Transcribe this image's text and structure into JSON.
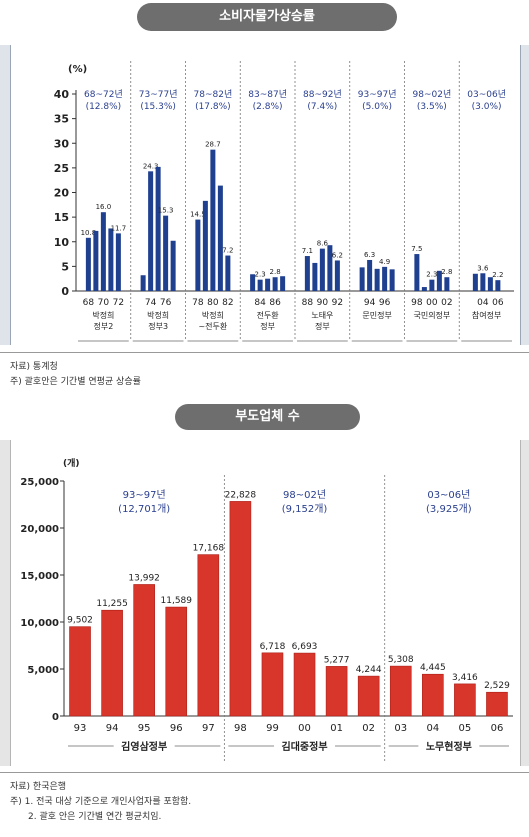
{
  "chart_data": [
    {
      "type": "bar",
      "title": "소비자물가상승률",
      "unit_label": "(%)",
      "ylim": [
        0,
        40
      ],
      "yticks": [
        0,
        5,
        10,
        15,
        20,
        25,
        30,
        35,
        40
      ],
      "periods": [
        {
          "range": "68~72년",
          "avg": "(12.8%)",
          "regime": [
            "박정희",
            "정부2"
          ],
          "ticks": [
            "68",
            "70",
            "72"
          ],
          "values": [
            10.8,
            12.2,
            16.0,
            12.7,
            11.7
          ],
          "labels": {
            "0": "10.8",
            "2": "16.0",
            "4": "11.7"
          }
        },
        {
          "range": "73~77년",
          "avg": "(15.3%)",
          "regime": [
            "박정희",
            "정부3"
          ],
          "ticks": [
            "74",
            "76"
          ],
          "values": [
            3.2,
            24.3,
            25.2,
            15.3,
            10.2
          ],
          "labels": {
            "1": "24.3",
            "3": "15.3"
          }
        },
        {
          "range": "78~82년",
          "avg": "(17.8%)",
          "regime": [
            "박정희",
            "~전두환"
          ],
          "ticks": [
            "78",
            "80",
            "82"
          ],
          "values": [
            14.5,
            18.3,
            28.7,
            21.4,
            7.2
          ],
          "labels": {
            "0": "14.5",
            "2": "28.7",
            "4": "7.2"
          }
        },
        {
          "range": "83~87년",
          "avg": "(2.8%)",
          "regime": [
            "전두환",
            "정부"
          ],
          "ticks": [
            "84",
            "86"
          ],
          "values": [
            3.4,
            2.3,
            2.5,
            2.8,
            3.0
          ],
          "labels": {
            "1": "2.3",
            "3": "2.8"
          }
        },
        {
          "range": "88~92년",
          "avg": "(7.4%)",
          "regime": [
            "노태우",
            "정부"
          ],
          "ticks": [
            "88",
            "90",
            "92"
          ],
          "values": [
            7.1,
            5.7,
            8.6,
            9.3,
            6.2
          ],
          "labels": {
            "0": "7.1",
            "2": "8.6",
            "4": "6.2"
          }
        },
        {
          "range": "93~97년",
          "avg": "(5.0%)",
          "regime": [
            "문민정부"
          ],
          "ticks": [
            "94",
            "96"
          ],
          "values": [
            4.8,
            6.3,
            4.5,
            4.9,
            4.4
          ],
          "labels": {
            "1": "6.3",
            "3": "4.9"
          }
        },
        {
          "range": "98~02년",
          "avg": "(3.5%)",
          "regime": [
            "국민의정부"
          ],
          "ticks": [
            "98",
            "00",
            "02"
          ],
          "values": [
            7.5,
            0.8,
            2.3,
            4.1,
            2.8
          ],
          "labels": {
            "0": "7.5",
            "2": "2.3",
            "4": "2.8"
          }
        },
        {
          "range": "03~06년",
          "avg": "(3.0%)",
          "regime": [
            "참여정부"
          ],
          "ticks": [
            "04",
            "06"
          ],
          "values": [
            3.5,
            3.6,
            2.8,
            2.2
          ],
          "labels": {
            "1": "3.6",
            "3": "2.2"
          }
        }
      ],
      "color": "#1f3f8f"
    },
    {
      "type": "bar",
      "title": "부도업체 수",
      "unit_label": "(개)",
      "ylim": [
        0,
        25000
      ],
      "yticks": [
        "0",
        "5,000",
        "10,000",
        "15,000",
        "20,000",
        "25,000"
      ],
      "ytick_values": [
        0,
        5000,
        10000,
        15000,
        20000,
        25000
      ],
      "categories": [
        "93",
        "94",
        "95",
        "96",
        "97",
        "98",
        "99",
        "00",
        "01",
        "02",
        "03",
        "04",
        "05",
        "06"
      ],
      "values": [
        9502,
        11255,
        13992,
        11589,
        17168,
        22828,
        6718,
        6693,
        5277,
        4244,
        5308,
        4445,
        3416,
        2529
      ],
      "value_labels": [
        "9,502",
        "11,255",
        "13,992",
        "11,589",
        "17,168",
        "22,828",
        "6,718",
        "6,693",
        "5,277",
        "4,244",
        "5,308",
        "4,445",
        "3,416",
        "2,529"
      ],
      "periods": [
        {
          "range": "93~97년",
          "avg": "(12,701개)",
          "regime": "김영삼정부",
          "from": 0,
          "to": 4
        },
        {
          "range": "98~02년",
          "avg": "(9,152개)",
          "regime": "김대중정부",
          "from": 5,
          "to": 9
        },
        {
          "range": "03~06년",
          "avg": "(3,925개)",
          "regime": "노무현정부",
          "from": 10,
          "to": 13
        }
      ],
      "color": "#d9362b"
    }
  ],
  "notes1": {
    "source": "자료) 통계청",
    "note": "주) 괄호안은 기간별 연평균 상승률"
  },
  "notes2": {
    "source": "자료) 한국은행",
    "note1": "주) 1. 전국 대상 기준으로 개인사업자를 포함함.",
    "note2": "2. 괄호 안은 기간별 연간 평균치임."
  }
}
